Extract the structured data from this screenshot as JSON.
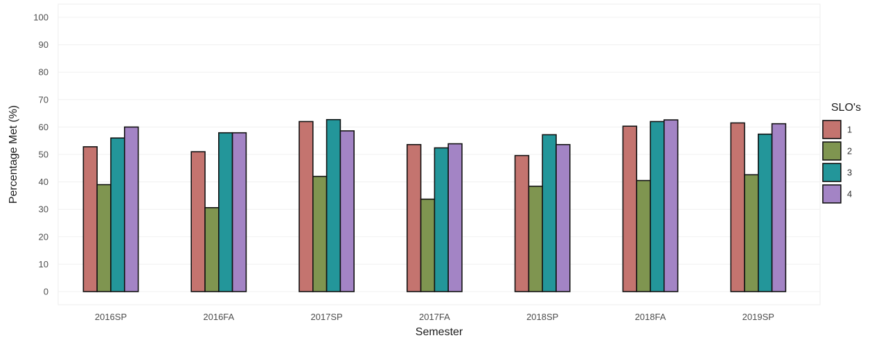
{
  "chart_data": {
    "type": "bar",
    "title": "",
    "xlabel": "Semester",
    "ylabel": "Percentage Met (%)",
    "ylim": [
      0,
      100
    ],
    "yticks": [
      0,
      10,
      20,
      30,
      40,
      50,
      60,
      70,
      80,
      90,
      100
    ],
    "grid": true,
    "legend_title": "SLO's",
    "legend_position": "right",
    "categories": [
      "2016SP",
      "2016FA",
      "2017SP",
      "2017FA",
      "2018SP",
      "2018FA",
      "2019SP"
    ],
    "series": [
      {
        "name": "1",
        "color": "#c4746f",
        "values": [
          52.8,
          51.0,
          62.0,
          53.6,
          49.6,
          60.3,
          61.5
        ]
      },
      {
        "name": "2",
        "color": "#7f9550",
        "values": [
          39.0,
          30.6,
          42.0,
          33.7,
          38.4,
          40.5,
          42.6
        ]
      },
      {
        "name": "3",
        "color": "#23969a",
        "values": [
          56.0,
          57.9,
          62.7,
          52.4,
          57.2,
          62.0,
          57.4
        ]
      },
      {
        "name": "4",
        "color": "#a384c5",
        "values": [
          60.0,
          57.9,
          58.6,
          53.9,
          53.6,
          62.6,
          61.2
        ]
      }
    ]
  }
}
